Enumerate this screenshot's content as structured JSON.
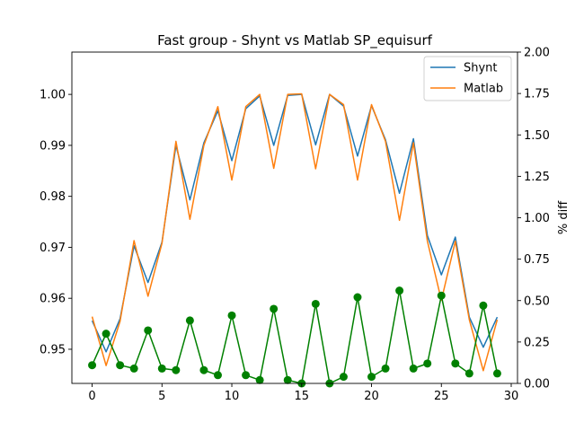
{
  "chart_data": {
    "type": "line",
    "title": "Fast group - Shynt vs Matlab SP_equisurf",
    "xlabel": "",
    "ylabel": "",
    "y2label": "% diff",
    "xlim": [
      -1.45,
      30.45
    ],
    "ylim": [
      0.9433,
      1.0083
    ],
    "y2lim": [
      0,
      2
    ],
    "x_ticks": [
      0,
      5,
      10,
      15,
      20,
      25,
      30
    ],
    "y_ticks": [
      0.95,
      0.96,
      0.97,
      0.98,
      0.99,
      1.0
    ],
    "y_tick_labels": [
      "0.95",
      "0.96",
      "0.97",
      "0.98",
      "0.99",
      "1.00"
    ],
    "y2_ticks": [
      0,
      0.25,
      0.5,
      0.75,
      1.0,
      1.25,
      1.5,
      1.75,
      2.0
    ],
    "y2_tick_labels": [
      "0.00",
      "0.25",
      "0.50",
      "0.75",
      "1.00",
      "1.25",
      "1.50",
      "1.75",
      "2.00"
    ],
    "legend_position": "top-right",
    "x": [
      0,
      1,
      2,
      3,
      4,
      5,
      6,
      7,
      8,
      9,
      10,
      11,
      12,
      13,
      14,
      15,
      16,
      17,
      18,
      19,
      20,
      21,
      22,
      23,
      24,
      25,
      26,
      27,
      28,
      29
    ],
    "series": [
      {
        "name": "Shynt",
        "color": "#1f77b4",
        "axis": "left",
        "values": [
          0.9556,
          0.9495,
          0.956,
          0.9703,
          0.9631,
          0.971,
          0.99,
          0.9793,
          0.9905,
          0.9968,
          0.987,
          0.9972,
          0.9997,
          0.99,
          0.9998,
          1.0,
          0.9901,
          1.0,
          0.9977,
          0.9879,
          0.9978,
          0.9911,
          0.9806,
          0.9913,
          0.9723,
          0.9646,
          0.972,
          0.9563,
          0.9504,
          0.9563
        ]
      },
      {
        "name": "Matlab",
        "color": "#ff7f0e",
        "axis": "left",
        "values": [
          0.9564,
          0.9468,
          0.9555,
          0.9713,
          0.9604,
          0.9708,
          0.9908,
          0.9755,
          0.99,
          0.9976,
          0.9832,
          0.9976,
          1.0,
          0.9855,
          1.0,
          1.0001,
          0.9854,
          1.0,
          0.998,
          0.9832,
          0.998,
          0.9908,
          0.9753,
          0.9905,
          0.9712,
          0.9596,
          0.9712,
          0.9558,
          0.9458,
          0.9558
        ]
      },
      {
        "name": "% diff",
        "color": "#008000",
        "axis": "right",
        "values": [
          0.11,
          0.3,
          0.11,
          0.09,
          0.32,
          0.09,
          0.08,
          0.38,
          0.08,
          0.05,
          0.41,
          0.05,
          0.02,
          0.45,
          0.02,
          0.0,
          0.48,
          0.0,
          0.04,
          0.52,
          0.04,
          0.09,
          0.56,
          0.09,
          0.12,
          0.53,
          0.12,
          0.06,
          0.47,
          0.06
        ]
      }
    ]
  }
}
